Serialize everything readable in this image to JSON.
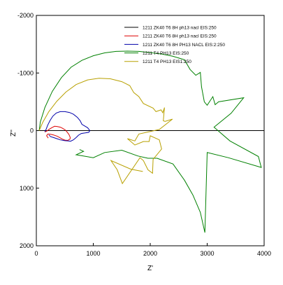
{
  "chart_data": {
    "type": "line",
    "xlabel": "Z'",
    "ylabel": "Z''",
    "xlim": [
      0,
      4000
    ],
    "ylim": [
      -2000,
      2000
    ],
    "y_inverted": true,
    "grid": false,
    "legend_position": "top-right",
    "x_ticks": [
      0,
      1000,
      2000,
      3000,
      4000
    ],
    "x_tick_labels": [
      "0",
      "1000",
      "2000",
      "3000",
      "4000"
    ],
    "y_ticks": [
      -2000,
      -1000,
      0,
      1000,
      2000
    ],
    "y_tick_labels": [
      "-2000",
      "-1000",
      "0",
      "1000",
      "2000"
    ],
    "zero_line_y": 0,
    "series": [
      {
        "name": "1211 ZK40 T6 8H ph13 nacl EIS:250",
        "color": "#000000",
        "points": []
      },
      {
        "name": "1211 ZK40 T6 8H ph13 nacl EIS:250",
        "color": "#dd0000",
        "points": [
          [
            150,
            25
          ],
          [
            160,
            20
          ],
          [
            190,
            5
          ],
          [
            220,
            -20
          ],
          [
            270,
            -50
          ],
          [
            320,
            -75
          ],
          [
            370,
            -70
          ],
          [
            420,
            -60
          ],
          [
            460,
            -40
          ],
          [
            510,
            -10
          ],
          [
            540,
            25
          ],
          [
            570,
            65
          ],
          [
            585,
            95
          ],
          [
            595,
            120
          ],
          [
            590,
            150
          ],
          [
            550,
            170
          ],
          [
            500,
            165
          ],
          [
            450,
            145
          ],
          [
            410,
            120
          ],
          [
            360,
            95
          ],
          [
            300,
            75
          ],
          [
            250,
            65
          ],
          [
            200,
            60
          ],
          [
            180,
            90
          ],
          [
            210,
            130
          ]
        ]
      },
      {
        "name": "1211 ZK40 T6 8H PH13 NACL EIS:2:250",
        "color": "#0000aa",
        "points": [
          [
            150,
            20
          ],
          [
            170,
            -20
          ],
          [
            200,
            -95
          ],
          [
            240,
            -175
          ],
          [
            290,
            -250
          ],
          [
            350,
            -305
          ],
          [
            420,
            -330
          ],
          [
            500,
            -330
          ],
          [
            580,
            -315
          ],
          [
            650,
            -285
          ],
          [
            720,
            -230
          ],
          [
            770,
            -170
          ],
          [
            800,
            -110
          ],
          [
            900,
            -50
          ],
          [
            940,
            0
          ],
          [
            920,
            30
          ],
          [
            860,
            40
          ],
          [
            790,
            50
          ],
          [
            740,
            80
          ],
          [
            700,
            120
          ],
          [
            650,
            160
          ],
          [
            600,
            185
          ],
          [
            560,
            180
          ],
          [
            500,
            175
          ],
          [
            420,
            160
          ],
          [
            360,
            140
          ],
          [
            300,
            120
          ],
          [
            250,
            105
          ],
          [
            220,
            75
          ]
        ]
      },
      {
        "name": "1211 T4 PH13 EIS:250",
        "color": "#008000",
        "points": [
          [
            50,
            0
          ],
          [
            70,
            -150
          ],
          [
            150,
            -400
          ],
          [
            280,
            -680
          ],
          [
            440,
            -920
          ],
          [
            610,
            -1100
          ],
          [
            800,
            -1220
          ],
          [
            1000,
            -1300
          ],
          [
            1200,
            -1350
          ],
          [
            1400,
            -1375
          ],
          [
            1600,
            -1380
          ],
          [
            1800,
            -1375
          ],
          [
            2000,
            -1355
          ],
          [
            2200,
            -1330
          ],
          [
            2400,
            -1290
          ],
          [
            2600,
            -1230
          ],
          [
            2700,
            -1060
          ],
          [
            2800,
            -960
          ],
          [
            2880,
            -1010
          ],
          [
            2900,
            -760
          ],
          [
            2950,
            -500
          ],
          [
            3000,
            -440
          ],
          [
            3100,
            -590
          ],
          [
            3140,
            -450
          ],
          [
            3200,
            -500
          ],
          [
            3640,
            -570
          ],
          [
            3420,
            -300
          ],
          [
            3120,
            -60
          ],
          [
            3400,
            180
          ],
          [
            3900,
            450
          ],
          [
            3950,
            640
          ],
          [
            3370,
            470
          ],
          [
            3000,
            380
          ],
          [
            2960,
            1770
          ],
          [
            2880,
            1420
          ],
          [
            2750,
            1120
          ],
          [
            2600,
            860
          ],
          [
            2400,
            580
          ],
          [
            2120,
            480
          ],
          [
            1960,
            480
          ],
          [
            1780,
            440
          ],
          [
            1500,
            340
          ],
          [
            1200,
            380
          ],
          [
            1000,
            470
          ],
          [
            700,
            420
          ],
          [
            830,
            360
          ],
          [
            760,
            330
          ]
        ]
      },
      {
        "name": "1211 T4 PH13 EIS1:250",
        "color": "#b8a000",
        "points": [
          [
            50,
            0
          ],
          [
            110,
            -140
          ],
          [
            220,
            -330
          ],
          [
            360,
            -510
          ],
          [
            520,
            -670
          ],
          [
            700,
            -800
          ],
          [
            900,
            -880
          ],
          [
            1100,
            -910
          ],
          [
            1300,
            -900
          ],
          [
            1500,
            -850
          ],
          [
            1640,
            -780
          ],
          [
            1710,
            -660
          ],
          [
            1800,
            -590
          ],
          [
            1880,
            -470
          ],
          [
            2050,
            -390
          ],
          [
            2100,
            -330
          ],
          [
            2190,
            -360
          ],
          [
            2220,
            -310
          ],
          [
            2250,
            -400
          ],
          [
            2230,
            -170
          ],
          [
            2260,
            -160
          ],
          [
            2390,
            -200
          ],
          [
            2160,
            -20
          ],
          [
            1800,
            60
          ],
          [
            1730,
            180
          ],
          [
            1600,
            140
          ],
          [
            1730,
            250
          ],
          [
            1880,
            190
          ],
          [
            1980,
            190
          ],
          [
            2000,
            90
          ],
          [
            2160,
            160
          ],
          [
            2200,
            320
          ],
          [
            2050,
            500
          ],
          [
            2040,
            740
          ],
          [
            1960,
            680
          ],
          [
            1880,
            520
          ],
          [
            1820,
            470
          ],
          [
            1510,
            920
          ],
          [
            1420,
            680
          ],
          [
            1310,
            520
          ],
          [
            1660,
            670
          ],
          [
            1870,
            710
          ]
        ]
      }
    ]
  }
}
